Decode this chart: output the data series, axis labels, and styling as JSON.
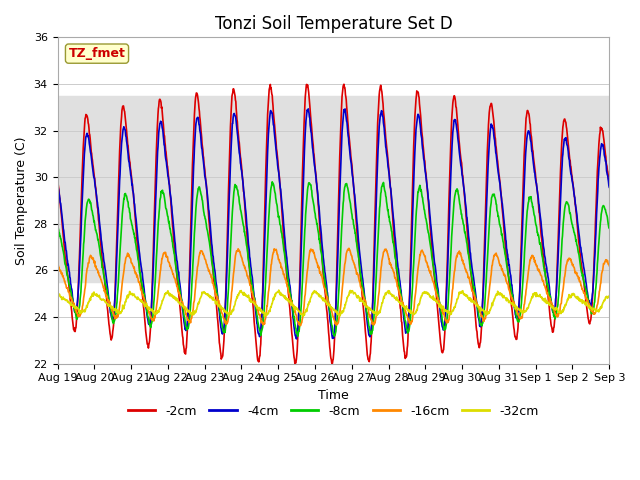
{
  "title": "Tonzi Soil Temperature Set D",
  "xlabel": "Time",
  "ylabel": "Soil Temperature (C)",
  "ylim": [
    22,
    36
  ],
  "yticks": [
    22,
    24,
    26,
    28,
    30,
    32,
    34,
    36
  ],
  "date_labels": [
    "Aug 19",
    "Aug 20",
    "Aug 21",
    "Aug 22",
    "Aug 23",
    "Aug 24",
    "Aug 25",
    "Aug 26",
    "Aug 27",
    "Aug 28",
    "Aug 29",
    "Aug 30",
    "Aug 31",
    "Sep 1",
    "Sep 2",
    "Sep 3"
  ],
  "series_labels": [
    "-2cm",
    "-4cm",
    "-8cm",
    "-16cm",
    "-32cm"
  ],
  "series_colors": [
    "#dd0000",
    "#0000cc",
    "#00cc00",
    "#ff8800",
    "#dddd00"
  ],
  "annotation_text": "TZ_fmet",
  "annotation_color": "#cc0000",
  "annotation_bg": "#ffffcc",
  "annotation_border": "#999933",
  "shaded_region": [
    25.5,
    33.5
  ],
  "shaded_color": "#e0e0e0",
  "background_color": "#ffffff",
  "n_days": 15,
  "samples_per_day": 96,
  "mean_temp": 28.0,
  "amplitudes": [
    5.5,
    4.5,
    3.0,
    1.5,
    0.45
  ],
  "means": [
    28.0,
    28.0,
    26.5,
    25.3,
    24.6
  ],
  "phase_shifts_hours": [
    0.0,
    0.5,
    1.5,
    3.0,
    5.0
  ],
  "peak_hour": 15.0,
  "title_fontsize": 12,
  "label_fontsize": 9,
  "tick_fontsize": 8,
  "legend_fontsize": 9,
  "linewidth": 1.2
}
